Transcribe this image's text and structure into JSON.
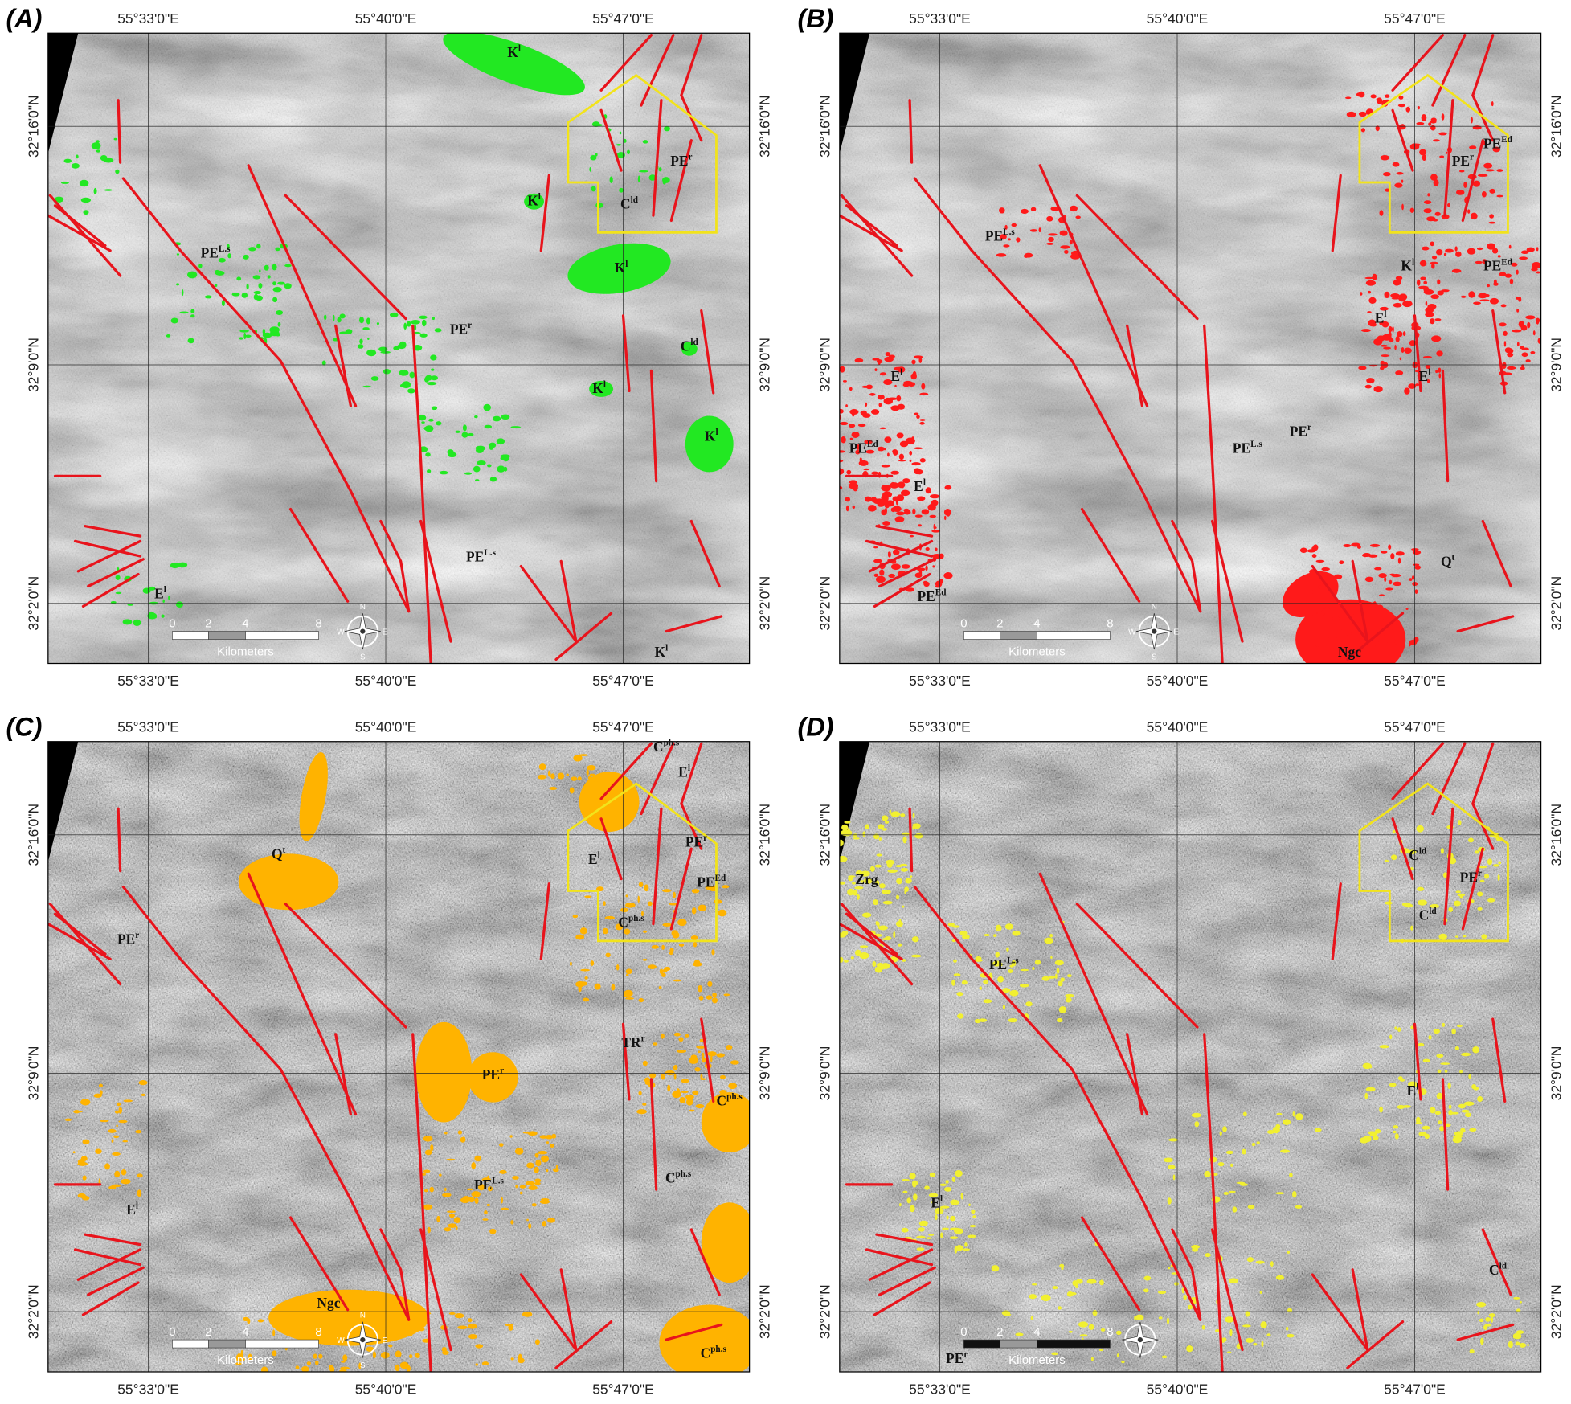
{
  "panels": [
    {
      "label": "(A)",
      "lon_labels_top": [
        "55°33'0\"E",
        "55°40'0\"E",
        "55°47'0\"E"
      ],
      "lon_labels_bottom": [
        "55°33'0\"E",
        "55°40'0\"E",
        "55°47'0\"E"
      ],
      "lat_labels_left": [
        "32°16'0\"N",
        "32°9'0\"N",
        "32°2'0\"N"
      ],
      "lat_labels_right": [
        "32°16'0\"N",
        "32°9'0\"N",
        "32°2'0\"N"
      ],
      "scale": [
        "0",
        "2",
        "4",
        "8"
      ],
      "scale_unit": "Kilometers",
      "compass": [
        "N",
        "S",
        "W",
        "E"
      ],
      "units": [
        {
          "base": "K",
          "sup": "l"
        },
        {
          "base": "PE",
          "sup": "r"
        },
        {
          "base": "C",
          "sup": "ld"
        },
        {
          "base": "K",
          "sup": "l"
        },
        {
          "base": "K",
          "sup": "l"
        },
        {
          "base": "PE",
          "sup": "L.s"
        },
        {
          "base": "PE",
          "sup": "r"
        },
        {
          "base": "C",
          "sup": "ld"
        },
        {
          "base": "K",
          "sup": "l"
        },
        {
          "base": "K",
          "sup": "l"
        },
        {
          "base": "PE",
          "sup": "L.s"
        },
        {
          "base": "E",
          "sup": "l"
        },
        {
          "base": "K",
          "sup": "l"
        }
      ]
    },
    {
      "label": "(B)",
      "lon_labels_top": [
        "55°33'0\"E",
        "55°40'0\"E",
        "55°47'0\"E"
      ],
      "lon_labels_bottom": [
        "55°33'0\"E",
        "55°40'0\"E",
        "55°47'0\"E"
      ],
      "lat_labels_left": [
        "32°16'0\"N",
        "32°9'0\"N",
        "32°2'0\"N"
      ],
      "lat_labels_right": [
        "32°16'0\"N",
        "32°9'0\"N",
        "32°2'0\"N"
      ],
      "scale": [
        "0",
        "2",
        "4",
        "8"
      ],
      "scale_unit": "Kilometers",
      "compass": [
        "N",
        "S",
        "W",
        "E"
      ],
      "units": [
        {
          "base": "PE",
          "sup": "r"
        },
        {
          "base": "PE",
          "sup": "Ed"
        },
        {
          "base": "PE",
          "sup": "L.s"
        },
        {
          "base": "K",
          "sup": "l"
        },
        {
          "base": "PE",
          "sup": "Ed"
        },
        {
          "base": "E",
          "sup": "l"
        },
        {
          "base": "E",
          "sup": "l"
        },
        {
          "base": "E",
          "sup": "l"
        },
        {
          "base": "PE",
          "sup": "r"
        },
        {
          "base": "PE",
          "sup": "L.s"
        },
        {
          "base": "PE",
          "sup": "Ed"
        },
        {
          "base": "E",
          "sup": "l"
        },
        {
          "base": "Q",
          "sup": "t"
        },
        {
          "base": "PE",
          "sup": "Ed"
        },
        {
          "base": "Ngc",
          "sup": ""
        }
      ]
    },
    {
      "label": "(C)",
      "lon_labels_top": [
        "55°33'0\"E",
        "55°40'0\"E",
        "55°47'0\"E"
      ],
      "lon_labels_bottom": [
        "55°33'0\"E",
        "55°40'0\"E",
        "55°47'0\"E"
      ],
      "lat_labels_left": [
        "32°16'0\"N",
        "32°9'0\"N",
        "32°2'0\"N"
      ],
      "lat_labels_right": [
        "32°16'0\"N",
        "32°9'0\"N",
        "32°2'0\"N"
      ],
      "scale": [
        "0",
        "2",
        "4",
        "8"
      ],
      "scale_unit": "Kilometers",
      "compass": [
        "N",
        "S",
        "W",
        "E"
      ],
      "units": [
        {
          "base": "C",
          "sup": "ph.s"
        },
        {
          "base": "E",
          "sup": "l"
        },
        {
          "base": "PE",
          "sup": "r"
        },
        {
          "base": "E",
          "sup": "l"
        },
        {
          "base": "PE",
          "sup": "Ed"
        },
        {
          "base": "Q",
          "sup": "t"
        },
        {
          "base": "C",
          "sup": "ph.s"
        },
        {
          "base": "PE",
          "sup": "r"
        },
        {
          "base": "TR",
          "sup": "r"
        },
        {
          "base": "PE",
          "sup": "r"
        },
        {
          "base": "C",
          "sup": "ph.s"
        },
        {
          "base": "PE",
          "sup": "L.s"
        },
        {
          "base": "C",
          "sup": "ph.s"
        },
        {
          "base": "E",
          "sup": "l"
        },
        {
          "base": "Ngc",
          "sup": ""
        },
        {
          "base": "C",
          "sup": "ph.s"
        }
      ]
    },
    {
      "label": "(D)",
      "lon_labels_top": [
        "55°33'0\"E",
        "55°40'0\"E",
        "55°47'0\"E"
      ],
      "lon_labels_bottom": [
        "55°33'0\"E",
        "55°40'0\"E",
        "55°47'0\"E"
      ],
      "lat_labels_left": [
        "32°16'0\"N",
        "32°9'0\"N",
        "32°2'0\"N"
      ],
      "lat_labels_right": [
        "32°16'0\"N",
        "32°9'0\"N",
        "32°2'0\"N"
      ],
      "scale": [
        "0",
        "2",
        "4",
        "8"
      ],
      "scale_unit": "Kilometers",
      "compass": [],
      "units": [
        {
          "base": "C",
          "sup": "ld"
        },
        {
          "base": "PE",
          "sup": "r"
        },
        {
          "base": "Zrg",
          "sup": ""
        },
        {
          "base": "C",
          "sup": "ld"
        },
        {
          "base": "PE",
          "sup": "L.s"
        },
        {
          "base": "E",
          "sup": "l"
        },
        {
          "base": "E",
          "sup": "l"
        },
        {
          "base": "C",
          "sup": "ld"
        },
        {
          "base": "PE",
          "sup": "r"
        }
      ]
    }
  ]
}
